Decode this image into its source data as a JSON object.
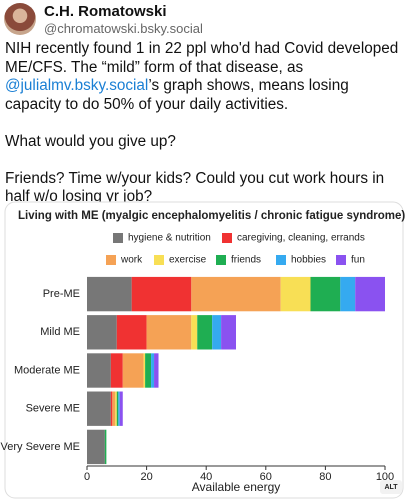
{
  "post": {
    "author": "C.H. Romatowski",
    "handle": "@chromatowski.bsky.social",
    "text_before_mention": "NIH recently found 1 in 22 ppl who'd had Covid developed ME/CFS. The “mild” form of that disease, as",
    "mention": "@julialmv.bsky.social",
    "text_after_mention": "’s graph shows, means losing capacity to do 50% of your daily activities.",
    "question": "What would you give up?",
    "followup": "Friends? Time w/your kids? Could you cut work hours in half w/o losing yr job?",
    "alt_badge": "ALT"
  },
  "chart_data": {
    "type": "stacked-bar-horizontal",
    "title": "Living with ME (myalgic encephalomyelitis / chronic fatigue syndrome)",
    "x_label": "Available energy",
    "categories": [
      "Pre-ME",
      "Mild ME",
      "Moderate ME",
      "Severe ME",
      "Very Severe ME"
    ],
    "series": [
      {
        "name": "hygiene & nutrition",
        "color": "#777777",
        "values": [
          15,
          10,
          8,
          8,
          6
        ]
      },
      {
        "name": "caregiving, cleaning, errands",
        "color": "#f03232",
        "values": [
          20,
          10,
          4,
          0.5,
          0
        ]
      },
      {
        "name": "work",
        "color": "#f5a255",
        "values": [
          30,
          15,
          7,
          1,
          0
        ]
      },
      {
        "name": "exercise",
        "color": "#f8df55",
        "values": [
          10,
          2,
          0.5,
          0.5,
          0
        ]
      },
      {
        "name": "friends",
        "color": "#1fae52",
        "values": [
          10,
          5,
          2,
          0.5,
          0.5
        ]
      },
      {
        "name": "hobbies",
        "color": "#35aaf0",
        "values": [
          5,
          3,
          1,
          0.5,
          0
        ]
      },
      {
        "name": "fun",
        "color": "#8a52f0",
        "values": [
          10,
          5,
          1.5,
          1,
          0
        ]
      }
    ],
    "xlim": [
      0,
      100
    ],
    "xticks": [
      0,
      20,
      40,
      60,
      80,
      100
    ],
    "grid": false
  }
}
